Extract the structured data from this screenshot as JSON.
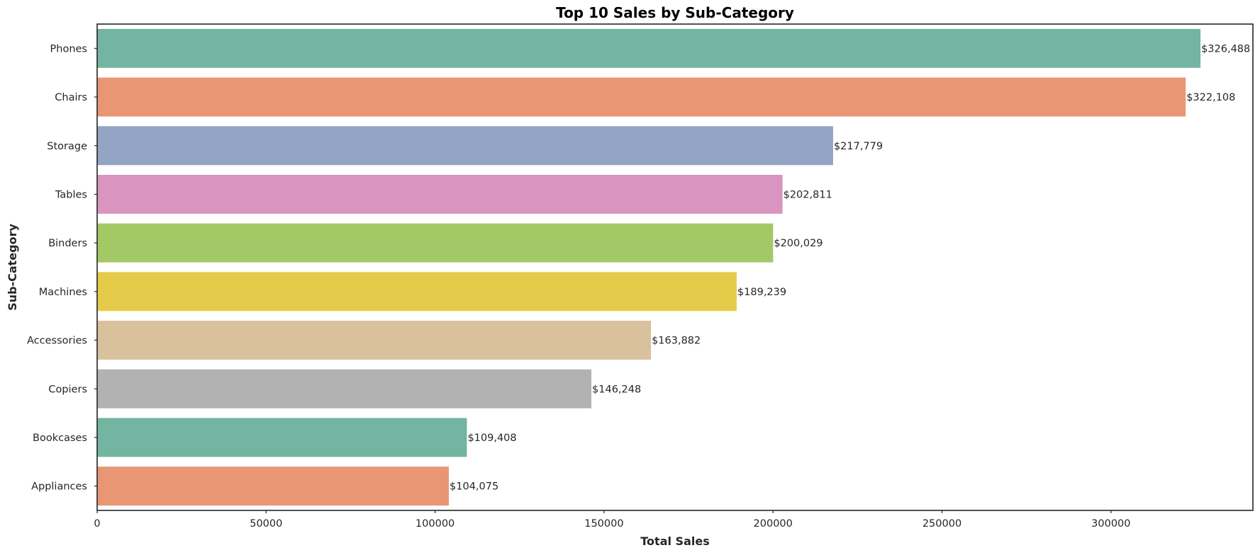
{
  "chart_data": {
    "type": "bar",
    "orientation": "horizontal",
    "title": "Top 10 Sales by Sub-Category",
    "xlabel": "Total Sales",
    "ylabel": "Sub-Category",
    "xlim": [
      0,
      342000
    ],
    "xticks": [
      0,
      50000,
      100000,
      150000,
      200000,
      250000,
      300000
    ],
    "xtick_labels": [
      "0",
      "50000",
      "100000",
      "150000",
      "200000",
      "250000",
      "300000"
    ],
    "grid": false,
    "categories": [
      "Phones",
      "Chairs",
      "Storage",
      "Tables",
      "Binders",
      "Machines",
      "Accessories",
      "Copiers",
      "Bookcases",
      "Appliances"
    ],
    "values": [
      326488,
      322108,
      217779,
      202811,
      200029,
      189239,
      163882,
      146248,
      109408,
      104075
    ],
    "value_labels": [
      "$326,488",
      "$322,108",
      "$217,779",
      "$202,811",
      "$200,029",
      "$189,239",
      "$163,882",
      "$146,248",
      "$109,408",
      "$104,075"
    ],
    "colors": [
      "#73b5a0",
      "#e89674",
      "#94a4c4",
      "#da94c0",
      "#a3c866",
      "#e5cb4a",
      "#d9c19e",
      "#b2b2b2",
      "#73b5a0",
      "#e89674"
    ]
  }
}
